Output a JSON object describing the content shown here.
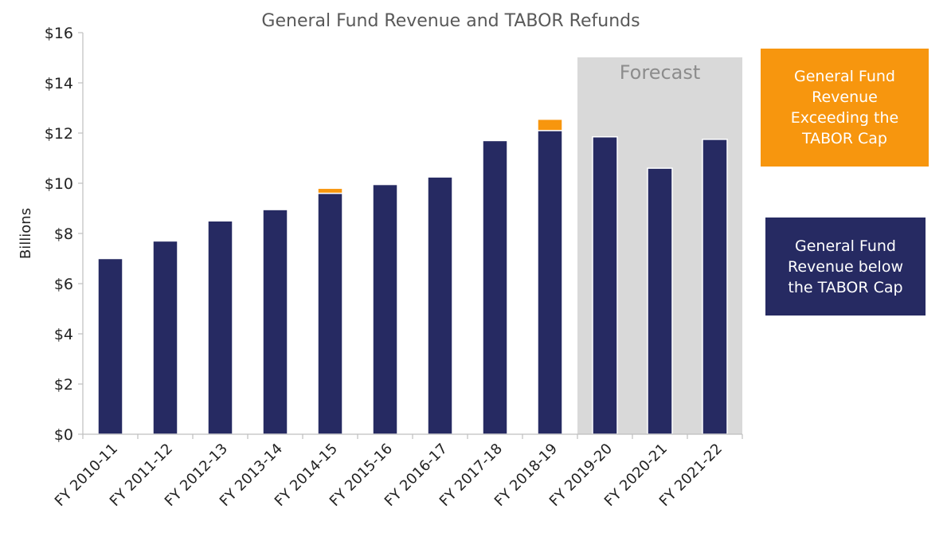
{
  "chart_data": {
    "type": "bar",
    "stacked": true,
    "title": "General Fund Revenue and TABOR Refunds",
    "xlabel": "",
    "ylabel": "Billions",
    "ylim": [
      0,
      16
    ],
    "yticks": [
      0,
      2,
      4,
      6,
      8,
      10,
      12,
      14,
      16
    ],
    "ytick_labels": [
      "$0",
      "$2",
      "$4",
      "$6",
      "$8",
      "$10",
      "$12",
      "$14",
      "$16"
    ],
    "categories": [
      "FY 2010-11",
      "FY 2011-12",
      "FY 2012-13",
      "FY 2013-14",
      "FY 2014-15",
      "FY 2015-16",
      "FY 2016-17",
      "FY 2017-18",
      "FY 2018-19",
      "FY 2019-20",
      "FY 2020-21",
      "FY 2021-22"
    ],
    "series": [
      {
        "name": "General Fund Revenue below the TABOR Cap",
        "color": "#262a62",
        "values": [
          7.0,
          7.7,
          8.5,
          8.95,
          9.6,
          9.95,
          10.25,
          11.7,
          12.1,
          11.85,
          10.6,
          11.75
        ]
      },
      {
        "name": "General Fund Revenue Exceeding the TABOR Cap",
        "color": "#f7960e",
        "values": [
          0,
          0,
          0,
          0,
          0.2,
          0,
          0,
          0,
          0.45,
          0,
          0,
          0
        ]
      }
    ],
    "forecast_region": {
      "label": "Forecast",
      "categories": [
        "FY 2019-20",
        "FY 2020-21",
        "FY 2021-22"
      ],
      "color": "#d9d9d9"
    },
    "legend_placement": "right"
  },
  "legend": {
    "over_label": "General Fund\nRevenue\nExceeding the\nTABOR Cap",
    "below_label": "General Fund\nRevenue below\nthe TABOR Cap"
  }
}
